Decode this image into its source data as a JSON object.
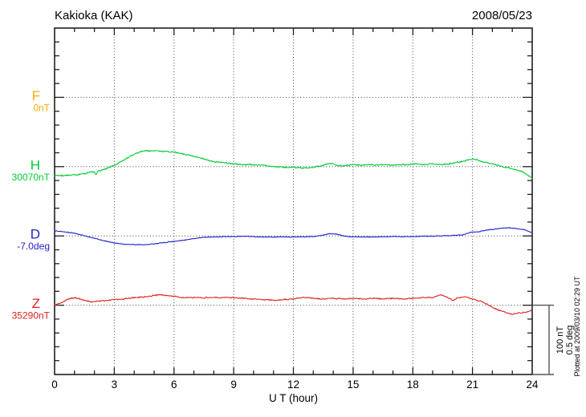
{
  "chart_data": {
    "type": "line",
    "title": "Kakioka (KAK)",
    "date": "2008/05/23",
    "xlabel": "U T (hour)",
    "x_range": [
      0,
      24
    ],
    "x_ticks": [
      0,
      3,
      6,
      9,
      12,
      15,
      18,
      21,
      24
    ],
    "x_minor_step_hours": 1,
    "grid": "dotted vertical lines every 3 hours, dotted horizontal line at each component baseline",
    "scale_note": [
      "100 nT",
      "0.5 deg"
    ],
    "plotted_at": "Plotted at 2009/03/10 02:29 UT",
    "units_per_division": {
      "nT": 100,
      "deg": 0.5
    },
    "panels": [
      {
        "label": "F",
        "base_label": "0nT",
        "base_value": 0,
        "unit": "nT",
        "color": "#FFAA00",
        "series": []
      },
      {
        "label": "H",
        "base_label": "30070nT",
        "base_value": 30070,
        "unit": "nT",
        "color": "#00CC33",
        "series": [
          [
            0,
            30057
          ],
          [
            0.5,
            30057
          ],
          [
            1,
            30058
          ],
          [
            1.5,
            30060
          ],
          [
            2,
            30063
          ],
          [
            2.08,
            30058
          ],
          [
            2.16,
            30063
          ],
          [
            2.5,
            30066
          ],
          [
            3,
            30072
          ],
          [
            3.5,
            30080
          ],
          [
            4,
            30088
          ],
          [
            4.5,
            30093
          ],
          [
            5,
            30093
          ],
          [
            5.5,
            30092
          ],
          [
            6,
            30091
          ],
          [
            6.5,
            30088
          ],
          [
            7,
            30085
          ],
          [
            7.5,
            30081
          ],
          [
            8,
            30077
          ],
          [
            8.5,
            30076
          ],
          [
            9,
            30074
          ],
          [
            9.5,
            30073
          ],
          [
            10,
            30073
          ],
          [
            10.5,
            30072
          ],
          [
            11,
            30070
          ],
          [
            11.5,
            30069
          ],
          [
            12,
            30069
          ],
          [
            12.5,
            30068
          ],
          [
            13,
            30069
          ],
          [
            13.5,
            30072
          ],
          [
            13.9,
            30075
          ],
          [
            14.2,
            30072
          ],
          [
            14.5,
            30071
          ],
          [
            15,
            30073
          ],
          [
            15.4,
            30072
          ],
          [
            15.8,
            30073
          ],
          [
            16.2,
            30072
          ],
          [
            16.6,
            30073
          ],
          [
            17,
            30072
          ],
          [
            17.4,
            30073
          ],
          [
            17.8,
            30073
          ],
          [
            18.2,
            30074
          ],
          [
            18.6,
            30073
          ],
          [
            19,
            30074
          ],
          [
            19.4,
            30073
          ],
          [
            19.8,
            30074
          ],
          [
            20.2,
            30076
          ],
          [
            20.6,
            30078
          ],
          [
            20.9,
            30081
          ],
          [
            21.2,
            30080
          ],
          [
            21.5,
            30077
          ],
          [
            22,
            30074
          ],
          [
            22.5,
            30070
          ],
          [
            23,
            30067
          ],
          [
            23.4,
            30064
          ],
          [
            23.7,
            30059
          ],
          [
            24,
            30053
          ]
        ]
      },
      {
        "label": "D",
        "base_label": "-7.0deg",
        "base_value": -7.0,
        "unit": "deg",
        "color": "#2222CC",
        "series": [
          [
            0,
            -6.964
          ],
          [
            0.5,
            -6.97
          ],
          [
            1,
            -6.981
          ],
          [
            1.5,
            -6.999
          ],
          [
            2,
            -7.016
          ],
          [
            2.5,
            -7.036
          ],
          [
            3,
            -7.051
          ],
          [
            3.5,
            -7.06
          ],
          [
            4,
            -7.063
          ],
          [
            4.5,
            -7.063
          ],
          [
            5,
            -7.057
          ],
          [
            5.5,
            -7.048
          ],
          [
            6,
            -7.039
          ],
          [
            6.5,
            -7.031
          ],
          [
            7,
            -7.019
          ],
          [
            7.5,
            -7.01
          ],
          [
            8,
            -7.008
          ],
          [
            8.5,
            -7.005
          ],
          [
            9,
            -7.005
          ],
          [
            9.5,
            -7.003
          ],
          [
            10,
            -7.005
          ],
          [
            10.5,
            -7.008
          ],
          [
            11,
            -7.008
          ],
          [
            11.5,
            -7.006
          ],
          [
            12,
            -7.008
          ],
          [
            12.5,
            -7.006
          ],
          [
            13,
            -7.005
          ],
          [
            13.4,
            -6.996
          ],
          [
            13.8,
            -6.984
          ],
          [
            14.2,
            -6.987
          ],
          [
            14.6,
            -7.002
          ],
          [
            15,
            -7.008
          ],
          [
            15.5,
            -7.006
          ],
          [
            16,
            -7.008
          ],
          [
            16.5,
            -7.006
          ],
          [
            17,
            -7.005
          ],
          [
            17.5,
            -7.006
          ],
          [
            18,
            -7.005
          ],
          [
            18.5,
            -7.002
          ],
          [
            19,
            -7.002
          ],
          [
            19.5,
            -6.999
          ],
          [
            20,
            -6.996
          ],
          [
            20.5,
            -6.993
          ],
          [
            20.9,
            -6.973
          ],
          [
            21.3,
            -6.97
          ],
          [
            21.7,
            -6.958
          ],
          [
            22,
            -6.953
          ],
          [
            22.5,
            -6.944
          ],
          [
            22.8,
            -6.941
          ],
          [
            23.2,
            -6.947
          ],
          [
            23.6,
            -6.955
          ],
          [
            24,
            -6.978
          ]
        ]
      },
      {
        "label": "Z",
        "base_label": "35290nT",
        "base_value": 35290,
        "unit": "nT",
        "color": "#DD2222",
        "series": [
          [
            0,
            35290
          ],
          [
            0.3,
            35293
          ],
          [
            0.7,
            35299
          ],
          [
            1,
            35301
          ],
          [
            1.3,
            35299
          ],
          [
            1.6,
            35296
          ],
          [
            1.9,
            35295
          ],
          [
            2.3,
            35296
          ],
          [
            2.7,
            35297
          ],
          [
            3,
            35298
          ],
          [
            3.5,
            35299
          ],
          [
            4,
            35301
          ],
          [
            4.5,
            35302
          ],
          [
            5,
            35304
          ],
          [
            5.3,
            35305
          ],
          [
            5.7,
            35304
          ],
          [
            6,
            35303
          ],
          [
            6.4,
            35301
          ],
          [
            7,
            35301
          ],
          [
            7.5,
            35301
          ],
          [
            8,
            35301
          ],
          [
            8.5,
            35301
          ],
          [
            9,
            35301
          ],
          [
            9.5,
            35300
          ],
          [
            10,
            35299
          ],
          [
            10.5,
            35298
          ],
          [
            11,
            35297
          ],
          [
            11.5,
            35298
          ],
          [
            12,
            35299
          ],
          [
            12.4,
            35301
          ],
          [
            12.8,
            35301
          ],
          [
            13,
            35300
          ],
          [
            13.5,
            35299
          ],
          [
            14,
            35300
          ],
          [
            14.5,
            35299
          ],
          [
            15,
            35300
          ],
          [
            15.5,
            35299
          ],
          [
            16,
            35300
          ],
          [
            16.5,
            35299
          ],
          [
            17,
            35300
          ],
          [
            17.5,
            35299
          ],
          [
            18,
            35300
          ],
          [
            18.5,
            35301
          ],
          [
            19,
            35301
          ],
          [
            19.4,
            35305
          ],
          [
            19.7,
            35302
          ],
          [
            20,
            35297
          ],
          [
            20.3,
            35301
          ],
          [
            20.7,
            35302
          ],
          [
            21,
            35299
          ],
          [
            21.4,
            35296
          ],
          [
            21.7,
            35292
          ],
          [
            22,
            35287
          ],
          [
            22.3,
            35283
          ],
          [
            22.7,
            35279
          ],
          [
            23,
            35277
          ],
          [
            23.4,
            35279
          ],
          [
            23.7,
            35280
          ],
          [
            24,
            35283
          ]
        ]
      }
    ]
  }
}
